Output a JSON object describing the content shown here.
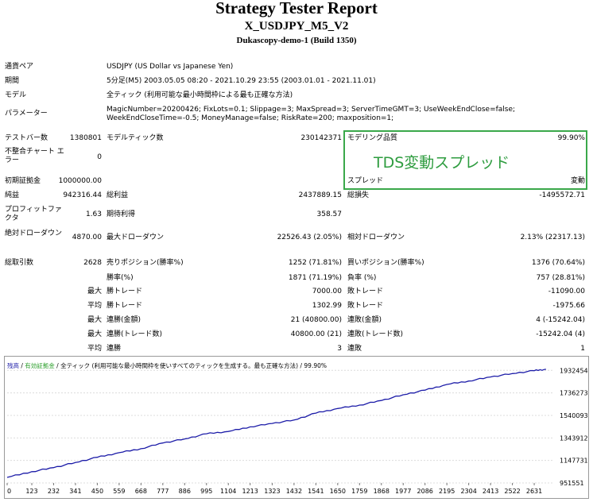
{
  "report": {
    "title": "Strategy Tester Report",
    "ea_name": "X_USDJPY_M5_V2",
    "server": "Dukascopy-demo-1 (Build 1350)"
  },
  "settings": {
    "symbol_label": "通貨ペア",
    "symbol_value": "USDJPY (US Dollar vs Japanese Yen)",
    "period_label": "期間",
    "period_value": "5分足(M5) 2003.05.05 08:20 - 2021.10.29 23:55 (2003.01.01 - 2021.11.01)",
    "model_label": "モデル",
    "model_value": "全ティック (利用可能な最小時間枠による最も正確な方法)",
    "params_label": "パラメーター",
    "params_value": "MagicNumber=20200426; FixLots=0.1; Slippage=3; MaxSpread=3; ServerTimeGMT=3; UseWeekEndClose=false; WeekEndCloseTime=-0.5; MoneyManage=false; RiskRate=200; maxposition=1;"
  },
  "stats": {
    "bars_label": "テストバー数",
    "bars_value": "1380801",
    "ticks_label": "モデルティック数",
    "ticks_value": "230142371",
    "quality_label": "モデリング品質",
    "quality_value": "99.90%",
    "mismatch_label": "不整合チャート エラー",
    "mismatch_value": "0",
    "spread_label": "スプレッド",
    "spread_value": "変動",
    "deposit_label": "初期証拠金",
    "deposit_value": "1000000.00",
    "net_profit_label": "純益",
    "net_profit_value": "942316.44",
    "gross_profit_label": "総利益",
    "gross_profit_value": "2437889.15",
    "gross_loss_label": "総損失",
    "gross_loss_value": "-1495572.71",
    "pf_label": "プロフィットファクタ",
    "pf_value": "1.63",
    "expected_label": "期待利得",
    "expected_value": "358.57",
    "abs_dd_label": "絶対ドローダウン",
    "abs_dd_value": "4870.00",
    "max_dd_label": "最大ドローダウン",
    "max_dd_value": "22526.43 (2.05%)",
    "rel_dd_label": "相対ドローダウン",
    "rel_dd_value": "2.13% (22317.13)",
    "total_trades_label": "総取引数",
    "total_trades_value": "2628",
    "short_label": "売りポジション(勝率%)",
    "short_value": "1252 (71.81%)",
    "long_label": "買いポジション(勝率%)",
    "long_value": "1376 (70.64%)",
    "win_rate_label": "勝率(%)",
    "win_rate_value": "1871 (71.19%)",
    "loss_rate_label": "負率 (%)",
    "loss_rate_value": "757 (28.81%)",
    "max_label": "最大",
    "avg_label": "平均",
    "largest_win_label": "勝トレード",
    "largest_win_value": "7000.00",
    "largest_loss_label": "敗トレード",
    "largest_loss_value": "-11090.00",
    "avg_win_label": "勝トレード",
    "avg_win_value": "1302.99",
    "avg_loss_label": "敗トレード",
    "avg_loss_value": "-1975.66",
    "max_cons_wins_label": "連勝(金額)",
    "max_cons_wins_value": "21 (40800.00)",
    "max_cons_losses_label": "連敗(金額)",
    "max_cons_losses_value": "4 (-15242.04)",
    "max_cons_profit_label": "連勝(トレード数)",
    "max_cons_profit_value": "40800.00 (21)",
    "max_cons_loss_label": "連敗(トレード数)",
    "max_cons_loss_value": "-15242.04 (4)",
    "avg_cons_wins_label": "連勝",
    "avg_cons_wins_value": "3",
    "avg_cons_losses_label": "連敗",
    "avg_cons_losses_value": "1"
  },
  "annotation": {
    "text": "TDS変動スプレッド",
    "color": "#3aa84a"
  },
  "chart_data": {
    "type": "line",
    "legend": {
      "balance": "残高",
      "separator": " / ",
      "margin": "有効証拠金",
      "model": " / 全ティック (利用可能な最小時間枠を使いすべてのティックを生成する。最も正確な方法) / 99.90%"
    },
    "x_ticks": [
      "0",
      "123",
      "232",
      "341",
      "450",
      "559",
      "668",
      "777",
      "886",
      "995",
      "1104",
      "1213",
      "1323",
      "1432",
      "1541",
      "1650",
      "1759",
      "1868",
      "1977",
      "2086",
      "2195",
      "2304",
      "2413",
      "2522",
      "2631"
    ],
    "y_ticks": [
      "1932454",
      "1736273",
      "1540093",
      "1343912",
      "1147731",
      "951551"
    ],
    "xlim": [
      0,
      2730
    ],
    "ylim": [
      951551,
      1990000
    ],
    "series": [
      {
        "name": "残高",
        "color": "#1c1ca8",
        "x": [
          0,
          123,
          232,
          341,
          450,
          559,
          668,
          777,
          886,
          995,
          1104,
          1213,
          1323,
          1432,
          1541,
          1650,
          1759,
          1868,
          1977,
          2086,
          2195,
          2304,
          2413,
          2522,
          2631,
          2690
        ],
        "y": [
          1000000,
          1050000,
          1085000,
          1130000,
          1175000,
          1215000,
          1250000,
          1300000,
          1335000,
          1380000,
          1400000,
          1440000,
          1470000,
          1500000,
          1560000,
          1600000,
          1630000,
          1670000,
          1720000,
          1760000,
          1810000,
          1840000,
          1875000,
          1905000,
          1930000,
          1942316
        ]
      }
    ],
    "margin_color": "#2ea02e"
  }
}
